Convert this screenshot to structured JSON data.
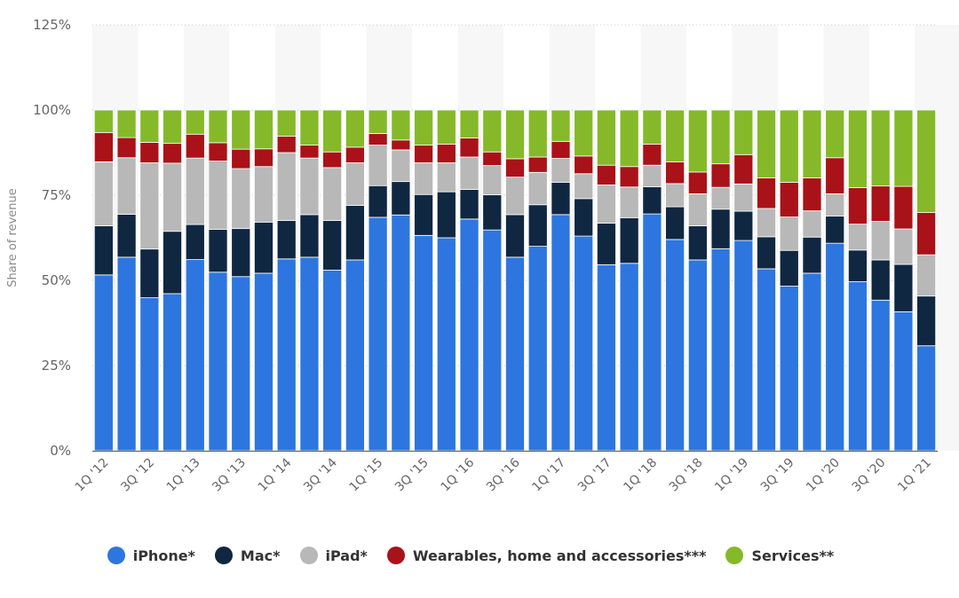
{
  "chart_data": {
    "type": "bar",
    "stacked": true,
    "title": "",
    "xlabel": "",
    "ylabel": "Share of revenue",
    "ylim": [
      0,
      125
    ],
    "yticks": [
      "0%",
      "25%",
      "50%",
      "75%",
      "100%",
      "125%"
    ],
    "categories": [
      "1Q '12",
      "2Q '12",
      "3Q '12",
      "4Q '12",
      "1Q '13",
      "2Q '13",
      "3Q '13",
      "4Q '13",
      "1Q '14",
      "2Q '14",
      "3Q '14",
      "4Q '14",
      "1Q '15",
      "2Q '15",
      "3Q '15",
      "4Q '15",
      "1Q '16",
      "2Q '16",
      "3Q '16",
      "4Q '16",
      "1Q '17",
      "2Q '17",
      "3Q '17",
      "4Q '17",
      "1Q '18",
      "2Q '18",
      "3Q '18",
      "4Q '18",
      "1Q '19",
      "2Q '19",
      "3Q '19",
      "4Q '19",
      "1Q '20",
      "2Q '20",
      "3Q '20",
      "4Q '20",
      "1Q '21"
    ],
    "x_tick_labels_shown": [
      "1Q '12",
      "3Q '12",
      "1Q '13",
      "3Q '13",
      "1Q '14",
      "3Q '14",
      "1Q '15",
      "3Q '15",
      "1Q '16",
      "3Q '16",
      "1Q '17",
      "3Q '17",
      "1Q '18",
      "3Q '18",
      "1Q '19",
      "3Q '19",
      "1Q '20",
      "3Q '20"
    ],
    "series": [
      {
        "name": "iPhone*",
        "color": "#2d76df",
        "values": [
          51.6,
          56.8,
          44.9,
          46.1,
          56.1,
          52.4,
          51.1,
          52.1,
          56.3,
          56.8,
          53.0,
          56.0,
          68.5,
          69.2,
          63.2,
          62.5,
          68.0,
          64.8,
          56.8,
          60.0,
          69.3,
          63.0,
          54.6,
          55.0,
          69.5,
          62.0,
          56.0,
          59.3,
          61.7,
          53.4,
          48.3,
          52.1,
          60.9,
          49.6,
          44.2,
          40.8,
          30.8
        ]
      },
      {
        "name": "Mac*",
        "color": "#0f2741",
        "values": [
          14.4,
          12.6,
          14.3,
          18.3,
          10.3,
          12.6,
          14.1,
          15.0,
          11.3,
          12.5,
          14.6,
          16.0,
          9.3,
          9.8,
          12.0,
          13.5,
          8.7,
          10.3,
          12.5,
          12.2,
          9.5,
          11.0,
          12.2,
          13.4,
          8.0,
          9.6,
          10.0,
          11.6,
          8.6,
          9.4,
          10.5,
          10.6,
          8.0,
          9.3,
          11.8,
          13.9,
          14.6
        ]
      },
      {
        "name": "iPad*",
        "color": "#b8b8b8",
        "values": [
          18.8,
          16.6,
          25.3,
          20.0,
          19.5,
          20.0,
          17.6,
          16.3,
          19.9,
          16.6,
          15.5,
          12.5,
          11.9,
          9.3,
          9.3,
          8.5,
          9.5,
          8.6,
          11.0,
          9.5,
          7.0,
          7.3,
          11.2,
          9.0,
          6.3,
          6.8,
          9.4,
          6.4,
          8.0,
          8.3,
          9.8,
          7.7,
          6.5,
          7.6,
          11.3,
          10.4,
          12.1
        ]
      },
      {
        "name": "Wearables, home and accessories***",
        "color": "#a91218",
        "values": [
          8.6,
          5.9,
          6.0,
          5.8,
          7.0,
          5.4,
          5.7,
          5.2,
          4.8,
          3.8,
          4.6,
          4.6,
          3.4,
          2.9,
          5.2,
          5.5,
          5.6,
          4.0,
          5.4,
          4.5,
          5.0,
          5.2,
          5.8,
          6.0,
          6.2,
          6.4,
          6.4,
          6.9,
          8.6,
          9.0,
          10.2,
          9.7,
          10.6,
          10.7,
          10.4,
          12.5,
          12.4
        ]
      },
      {
        "name": "Services**",
        "color": "#86b929",
        "values": [
          6.6,
          8.1,
          9.5,
          9.8,
          7.1,
          9.6,
          11.5,
          11.4,
          7.7,
          10.3,
          12.3,
          10.9,
          6.9,
          8.8,
          10.3,
          10.0,
          8.2,
          12.3,
          14.3,
          13.8,
          9.2,
          13.5,
          16.2,
          16.6,
          10.0,
          15.2,
          18.2,
          15.8,
          13.1,
          19.9,
          21.2,
          19.9,
          14.0,
          22.8,
          22.3,
          22.4,
          30.1
        ]
      }
    ]
  }
}
